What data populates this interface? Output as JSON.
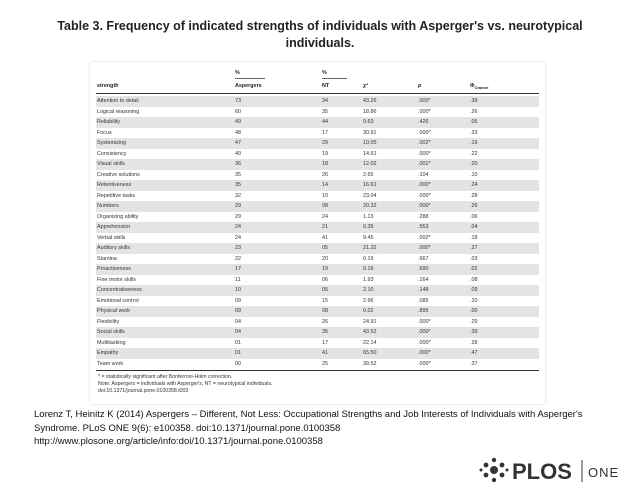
{
  "title": "Table 3. Frequency of indicated strengths of individuals with Asperger's vs. neurotypical individuals.",
  "table": {
    "header_top": {
      "aspergers": "%",
      "nt": "%"
    },
    "header": {
      "strength": "strength",
      "aspergers": "Aspergers",
      "nt": "NT",
      "chi2": "χ²",
      "p": "p",
      "phi": "Φ",
      "phi_sub": "Cramer"
    },
    "rows": [
      [
        "Attention to detail",
        "73",
        "34",
        "43.26",
        ".000*",
        ".39"
      ],
      [
        "Logical reasoning",
        "60",
        "35",
        "18.86",
        ".000*",
        ".26"
      ],
      [
        "Reliability",
        "49",
        "44",
        "0.63",
        ".426",
        ".05"
      ],
      [
        "Focus",
        "48",
        "17",
        "30.91",
        ".000*",
        ".33"
      ],
      [
        "Systemizing",
        "47",
        "29",
        "10.05",
        ".002*",
        ".19"
      ],
      [
        "Consistency",
        "40",
        "19",
        "14.61",
        ".000*",
        ".22"
      ],
      [
        "Visual skills",
        "36",
        "18",
        "12.02",
        ".001*",
        ".20"
      ],
      [
        "Creative solutions",
        "35",
        "26",
        "2.65",
        ".104",
        ".10"
      ],
      [
        "Retentiveness",
        "35",
        "14",
        "16.61",
        ".000*",
        ".24"
      ],
      [
        "Repetitive tasks",
        "32",
        "10",
        "23.04",
        ".000*",
        ".28"
      ],
      [
        "Numbers",
        "29",
        "08",
        "20.32",
        ".000*",
        ".26"
      ],
      [
        "Organizing ability",
        "29",
        "24",
        "1.13",
        ".288",
        ".06"
      ],
      [
        "Apprehension",
        "24",
        "21",
        "0.35",
        ".553",
        ".04"
      ],
      [
        "Verbal skills",
        "24",
        "41",
        "9.45",
        ".002*",
        ".18"
      ],
      [
        "Auditory skills",
        "23",
        "05",
        "21.32",
        ".000*",
        ".27"
      ],
      [
        "Stamina",
        "22",
        "20",
        "0.19",
        ".667",
        ".03"
      ],
      [
        "Proactiveness",
        "17",
        "19",
        "0.16",
        ".690",
        ".02"
      ],
      [
        "Fine motor skills",
        "11",
        "06",
        "1.93",
        ".164",
        ".08"
      ],
      [
        "Concentrativeness",
        "10",
        "05",
        "2.10",
        ".148",
        ".09"
      ],
      [
        "Emotional control",
        "09",
        "15",
        "2.96",
        ".085",
        ".10"
      ],
      [
        "Physical work",
        "09",
        "08",
        "0.02",
        ".895",
        ".00"
      ],
      [
        "Flexibility",
        "04",
        "26",
        "24.91",
        ".000*",
        ".29"
      ],
      [
        "Social skills",
        "04",
        "35",
        "43.52",
        ".000*",
        ".39"
      ],
      [
        "Multitasking",
        "01",
        "17",
        "22.14",
        ".000*",
        ".28"
      ],
      [
        "Empathy",
        "01",
        "41",
        "65.50",
        ".000*",
        ".47"
      ],
      [
        "Team work",
        "00",
        "25",
        "39.52",
        ".000*",
        ".37"
      ]
    ],
    "footnotes": [
      "* = statistically significant after Bonferroni-Holm correction.",
      "Note: Aspergers = individuals with Asperger's, NT = neurotypical individuals.",
      "doi:10.1371/journal.pone.0100358.t003"
    ]
  },
  "citation": [
    "Lorenz T, Heinitz K (2014) Aspergers – Different, Not Less: Occupational Strengths and Job Interests of Individuals with Asperger's",
    "Syndrome. PLoS ONE 9(6): e100358. doi:10.1371/journal.pone.0100358",
    "http://www.plosone.org/article/info:doi/10.1371/journal.pone.0100358"
  ],
  "logo": {
    "name": "PLOS",
    "journal": "ONE"
  }
}
